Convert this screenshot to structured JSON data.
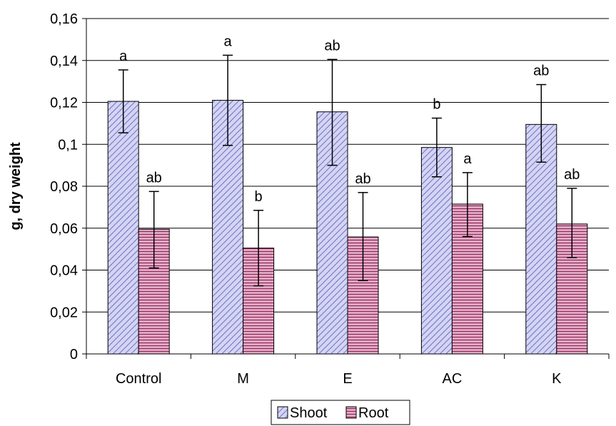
{
  "chart_data": {
    "type": "bar",
    "title": "",
    "xlabel": "",
    "ylabel": "g, dry weight",
    "ylim": [
      0,
      0.16
    ],
    "yticks": [
      "0",
      "0,02",
      "0,04",
      "0,06",
      "0,08",
      "0,1",
      "0,12",
      "0,14",
      "0,16"
    ],
    "grid": true,
    "legend_position": "bottom",
    "categories": [
      "Control",
      "M",
      "E",
      "AC",
      "K"
    ],
    "series": [
      {
        "name": "Shoot",
        "color": "#c8c8f0",
        "hatch_color": "#6868b8",
        "values": [
          0.1205,
          0.121,
          0.1155,
          0.0985,
          0.1095
        ],
        "err_low": [
          0.1055,
          0.0995,
          0.09,
          0.0845,
          0.0915
        ],
        "err_high": [
          0.1355,
          0.1425,
          0.1405,
          0.1125,
          0.1285
        ],
        "labels": [
          "a",
          "a",
          "ab",
          "b",
          "ab"
        ]
      },
      {
        "name": "Root",
        "color": "#d890b0",
        "hatch_color": "#8a2050",
        "values": [
          0.0595,
          0.0505,
          0.0558,
          0.0715,
          0.062
        ],
        "err_low": [
          0.041,
          0.0325,
          0.035,
          0.056,
          0.046
        ],
        "err_high": [
          0.0775,
          0.0685,
          0.077,
          0.0865,
          0.079
        ],
        "labels": [
          "ab",
          "b",
          "ab",
          "a",
          "ab"
        ]
      }
    ]
  }
}
